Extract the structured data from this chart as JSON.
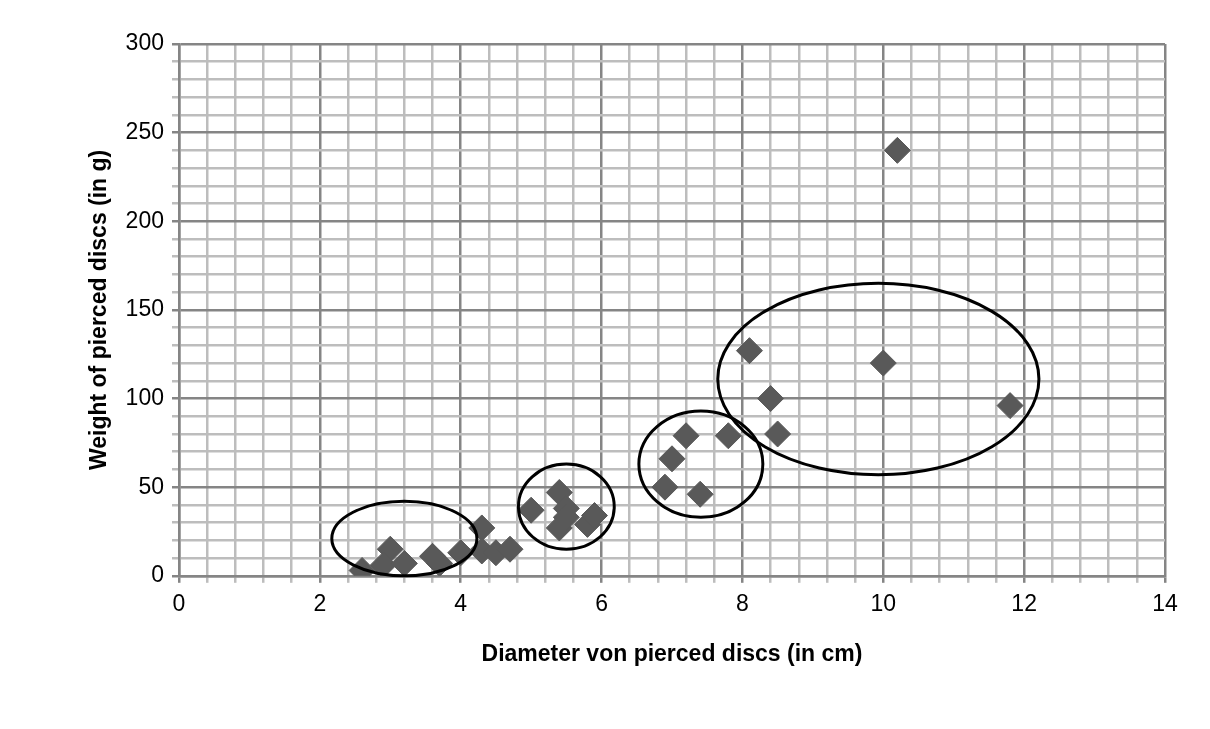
{
  "chart_data": {
    "type": "scatter",
    "xlabel": "Diameter von pierced discs (in cm)",
    "ylabel": "Weight of pierced discs (in g)",
    "marker": "diamond",
    "grid": true,
    "legend": false,
    "xlim": [
      0,
      14
    ],
    "ylim": [
      0,
      300
    ],
    "xticks": [
      0,
      {
        "value": 0.4,
        "label": null
      },
      {
        "value": 0.8,
        "label": null
      },
      {
        "value": 1.2,
        "label": null
      },
      {
        "value": 1.6,
        "label": null
      },
      2,
      {
        "value": 2.4,
        "label": null
      },
      {
        "value": 2.8,
        "label": null
      },
      {
        "value": 3.2,
        "label": null
      },
      {
        "value": 3.6,
        "label": null
      },
      4,
      {
        "value": 4.4,
        "label": null
      },
      {
        "value": 4.8,
        "label": null
      },
      {
        "value": 5.2,
        "label": null
      },
      {
        "value": 5.6,
        "label": null
      },
      6,
      {
        "value": 6.4,
        "label": null
      },
      {
        "value": 6.8,
        "label": null
      },
      {
        "value": 7.2,
        "label": null
      },
      {
        "value": 7.6,
        "label": null
      },
      8,
      {
        "value": 8.4,
        "label": null
      },
      {
        "value": 8.8,
        "label": null
      },
      {
        "value": 9.2,
        "label": null
      },
      {
        "value": 9.6,
        "label": null
      },
      10,
      {
        "value": 10.4,
        "label": null
      },
      {
        "value": 10.8,
        "label": null
      },
      {
        "value": 11.2,
        "label": null
      },
      {
        "value": 11.6,
        "label": null
      },
      12,
      {
        "value": 12.4,
        "label": null
      },
      {
        "value": 12.8,
        "label": null
      },
      {
        "value": 13.2,
        "label": null
      },
      {
        "value": 13.6,
        "label": null
      },
      14
    ],
    "yticks": [
      0,
      {
        "value": 10,
        "label": null
      },
      {
        "value": 20,
        "label": null
      },
      {
        "value": 30,
        "label": null
      },
      {
        "value": 40,
        "label": null
      },
      50,
      {
        "value": 60,
        "label": null
      },
      {
        "value": 70,
        "label": null
      },
      {
        "value": 80,
        "label": null
      },
      {
        "value": 90,
        "label": null
      },
      100,
      {
        "value": 110,
        "label": null
      },
      {
        "value": 120,
        "label": null
      },
      {
        "value": 130,
        "label": null
      },
      {
        "value": 140,
        "label": null
      },
      150,
      {
        "value": 160,
        "label": null
      },
      {
        "value": 170,
        "label": null
      },
      {
        "value": 180,
        "label": null
      },
      {
        "value": 190,
        "label": null
      },
      200,
      {
        "value": 210,
        "label": null
      },
      {
        "value": 220,
        "label": null
      },
      {
        "value": 230,
        "label": null
      },
      {
        "value": 240,
        "label": null
      },
      250,
      {
        "value": 260,
        "label": null
      },
      {
        "value": 270,
        "label": null
      },
      {
        "value": 280,
        "label": null
      },
      {
        "value": 290,
        "label": null
      },
      300
    ],
    "series": [
      {
        "color": "#595959",
        "x": [
          2.6,
          3.0,
          2.9,
          3.2,
          3.6,
          3.7,
          4.0,
          4.3,
          4.3,
          4.5,
          4.7,
          5.0,
          5.4,
          5.5,
          5.4,
          5.5,
          5.8,
          5.9,
          7.2,
          7.8,
          7.0,
          6.9,
          7.4,
          8.1,
          8.4,
          8.5,
          10.0,
          11.8,
          10.2
        ],
        "values": [
          3,
          15,
          6,
          7,
          11,
          7,
          13,
          27,
          14,
          13,
          15,
          37,
          47,
          38,
          27,
          33,
          29,
          34,
          79,
          79,
          66,
          50,
          46,
          127,
          100,
          80,
          120,
          96,
          240
        ]
      }
    ]
  }
}
